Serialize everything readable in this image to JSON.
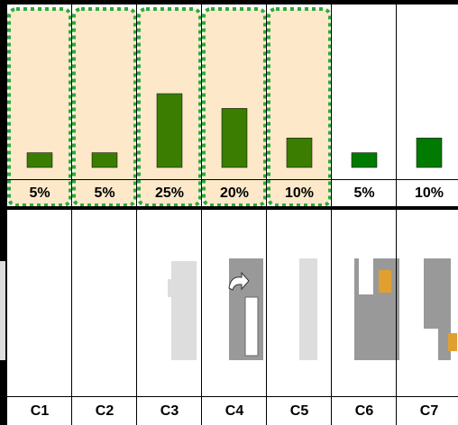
{
  "chart_data": {
    "type": "bar",
    "categories": [
      "C1",
      "C2",
      "C3",
      "C4",
      "C5",
      "C6",
      "C7"
    ],
    "values": [
      5,
      5,
      25,
      20,
      10,
      5,
      10
    ],
    "value_labels": [
      "5%",
      "5%",
      "25%",
      "20%",
      "10%",
      "5%",
      "10%"
    ],
    "colors": [
      "#3a7d00",
      "#3a7d00",
      "#3a7d00",
      "#3a7d00",
      "#3a7d00",
      "#007a00",
      "#007a00"
    ],
    "highlighted": [
      true,
      true,
      true,
      true,
      true,
      false,
      false
    ],
    "ylim": [
      0,
      50
    ]
  }
}
